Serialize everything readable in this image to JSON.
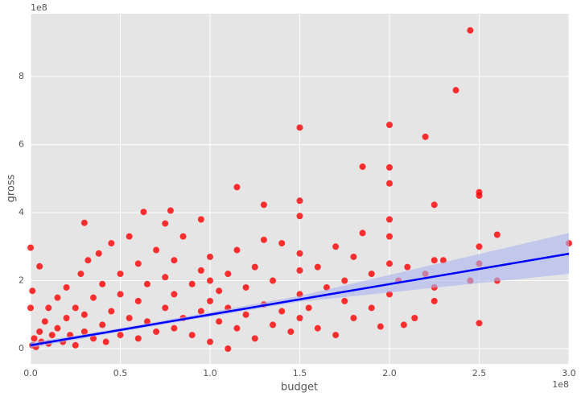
{
  "chart_data": {
    "type": "scatter",
    "x_label": "budget",
    "y_label": "gross",
    "x_offset_label": "1e8",
    "y_offset_label": "1e8",
    "xlim": [
      0,
      3.0
    ],
    "ylim": [
      -0.45,
      9.85
    ],
    "xticks": [
      {
        "value": 0,
        "label": "0.0"
      },
      {
        "value": 0.5,
        "label": "0.5"
      },
      {
        "value": 1.0,
        "label": "1.0"
      },
      {
        "value": 1.5,
        "label": "1.5"
      },
      {
        "value": 2.0,
        "label": "2.0"
      },
      {
        "value": 2.5,
        "label": "2.5"
      },
      {
        "value": 3.0,
        "label": "3.0"
      }
    ],
    "yticks": [
      0,
      2,
      4,
      6,
      8
    ],
    "grid": true,
    "series": [
      {
        "color": "#ff0000",
        "x": [
          0.01,
          0.02,
          0.03,
          0.05,
          0.06,
          0.08,
          0.1,
          0.1,
          0.12,
          0.15,
          0.15,
          0.18,
          0.2,
          0.2,
          0.22,
          0.25,
          0.25,
          0.28,
          0.3,
          0.3,
          0.32,
          0.35,
          0.35,
          0.38,
          0.4,
          0.4,
          0.42,
          0.45,
          0.45,
          0.5,
          0.5,
          0.5,
          0.55,
          0.55,
          0.6,
          0.6,
          0.6,
          0.65,
          0.65,
          0.7,
          0.7,
          0.75,
          0.75,
          0.8,
          0.8,
          0.8,
          0.85,
          0.85,
          0.9,
          0.9,
          0.95,
          0.95,
          1.0,
          1.0,
          1.0,
          1.0,
          1.05,
          1.05,
          1.1,
          1.1,
          1.15,
          1.15,
          1.2,
          1.2,
          1.25,
          1.25,
          1.3,
          1.3,
          1.35,
          1.35,
          1.4,
          1.4,
          1.45,
          1.5,
          1.5,
          1.5,
          1.5,
          1.5,
          1.55,
          1.6,
          1.6,
          1.65,
          1.7,
          1.7,
          1.75,
          1.75,
          1.8,
          1.8,
          1.85,
          1.9,
          1.9,
          1.95,
          2.0,
          2.0,
          2.0,
          2.0,
          2.05,
          2.08,
          2.1,
          2.14,
          2.2,
          2.25,
          2.25,
          2.25,
          2.3,
          2.45,
          2.5,
          2.5,
          2.5,
          2.6,
          2.6,
          3.0,
          0.0,
          0.05,
          1.1,
          0.01,
          0.0,
          2.45,
          2.37,
          2.2,
          2.0,
          1.5,
          1.85,
          2.0,
          2.5,
          2.5,
          2.0,
          2.25,
          1.5,
          1.15,
          1.3,
          0.78,
          0.63,
          0.3,
          0.75,
          0.95
        ],
        "values": [
          0.1,
          0.3,
          0.05,
          0.5,
          0.2,
          0.8,
          0.15,
          1.2,
          0.4,
          0.6,
          1.5,
          0.2,
          0.9,
          1.8,
          0.4,
          0.1,
          1.2,
          2.2,
          0.5,
          1.0,
          2.6,
          0.3,
          1.5,
          2.8,
          0.7,
          1.9,
          0.2,
          1.1,
          3.1,
          0.4,
          1.6,
          2.2,
          0.9,
          3.3,
          0.3,
          1.4,
          2.5,
          0.8,
          1.9,
          0.5,
          2.9,
          1.2,
          2.1,
          0.6,
          1.6,
          2.6,
          0.9,
          3.3,
          0.4,
          1.9,
          1.1,
          2.3,
          0.2,
          1.4,
          2.0,
          2.7,
          0.8,
          1.7,
          1.2,
          2.2,
          0.6,
          2.9,
          1.0,
          1.8,
          0.3,
          2.4,
          1.3,
          3.2,
          0.7,
          2.0,
          1.1,
          3.1,
          0.5,
          0.9,
          1.6,
          2.3,
          2.8,
          3.9,
          1.2,
          0.6,
          2.4,
          1.8,
          0.4,
          3.0,
          1.4,
          2.0,
          0.9,
          2.7,
          3.4,
          1.2,
          2.2,
          0.65,
          1.6,
          2.5,
          3.3,
          3.8,
          2.0,
          0.7,
          2.4,
          0.9,
          2.2,
          1.4,
          1.8,
          2.6,
          2.6,
          2.0,
          0.75,
          2.5,
          3.0,
          2.0,
          3.35,
          3.1,
          2.97,
          2.42,
          0.0,
          1.7,
          1.2,
          9.36,
          7.6,
          6.23,
          6.58,
          6.5,
          5.35,
          5.33,
          4.6,
          4.5,
          4.86,
          4.23,
          4.35,
          4.75,
          4.23,
          4.06,
          4.02,
          3.7,
          3.68,
          3.8
        ]
      }
    ],
    "regression": {
      "color": "#0000ff",
      "band_color": "#aab4f0",
      "x": [
        0,
        0.5,
        1.5,
        3.0
      ],
      "values": [
        0.1,
        0.55,
        1.45,
        2.79
      ],
      "ci_lower": [
        0.02,
        0.5,
        1.38,
        2.2
      ],
      "ci_upper": [
        0.18,
        0.6,
        1.55,
        3.4
      ]
    }
  }
}
